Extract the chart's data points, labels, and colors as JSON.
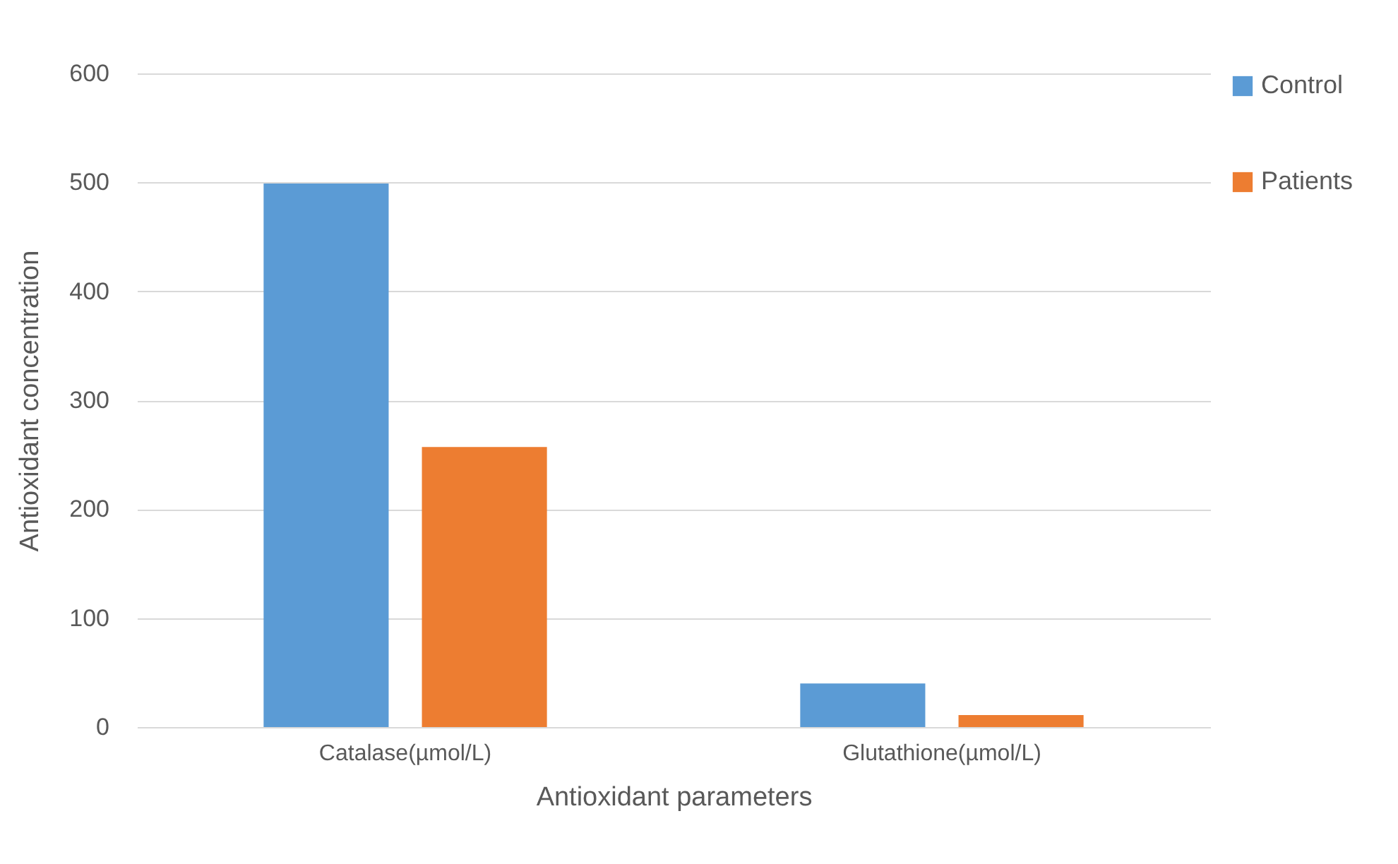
{
  "chart_data": {
    "type": "bar",
    "xlabel": "Antioxidant parameters",
    "ylabel": "Antioxidant concentration",
    "categories": [
      "Catalase(µmol/L)",
      "Glutathione(µmol/L)"
    ],
    "series": [
      {
        "name": "Control",
        "color": "#5b9bd5",
        "values": [
          499,
          40
        ]
      },
      {
        "name": "Patients",
        "color": "#ed7d31",
        "values": [
          257,
          11
        ]
      }
    ],
    "ylim": [
      0,
      600
    ],
    "yticks": [
      0,
      100,
      200,
      300,
      400,
      500,
      600
    ],
    "grid": "y",
    "legend": "right"
  }
}
